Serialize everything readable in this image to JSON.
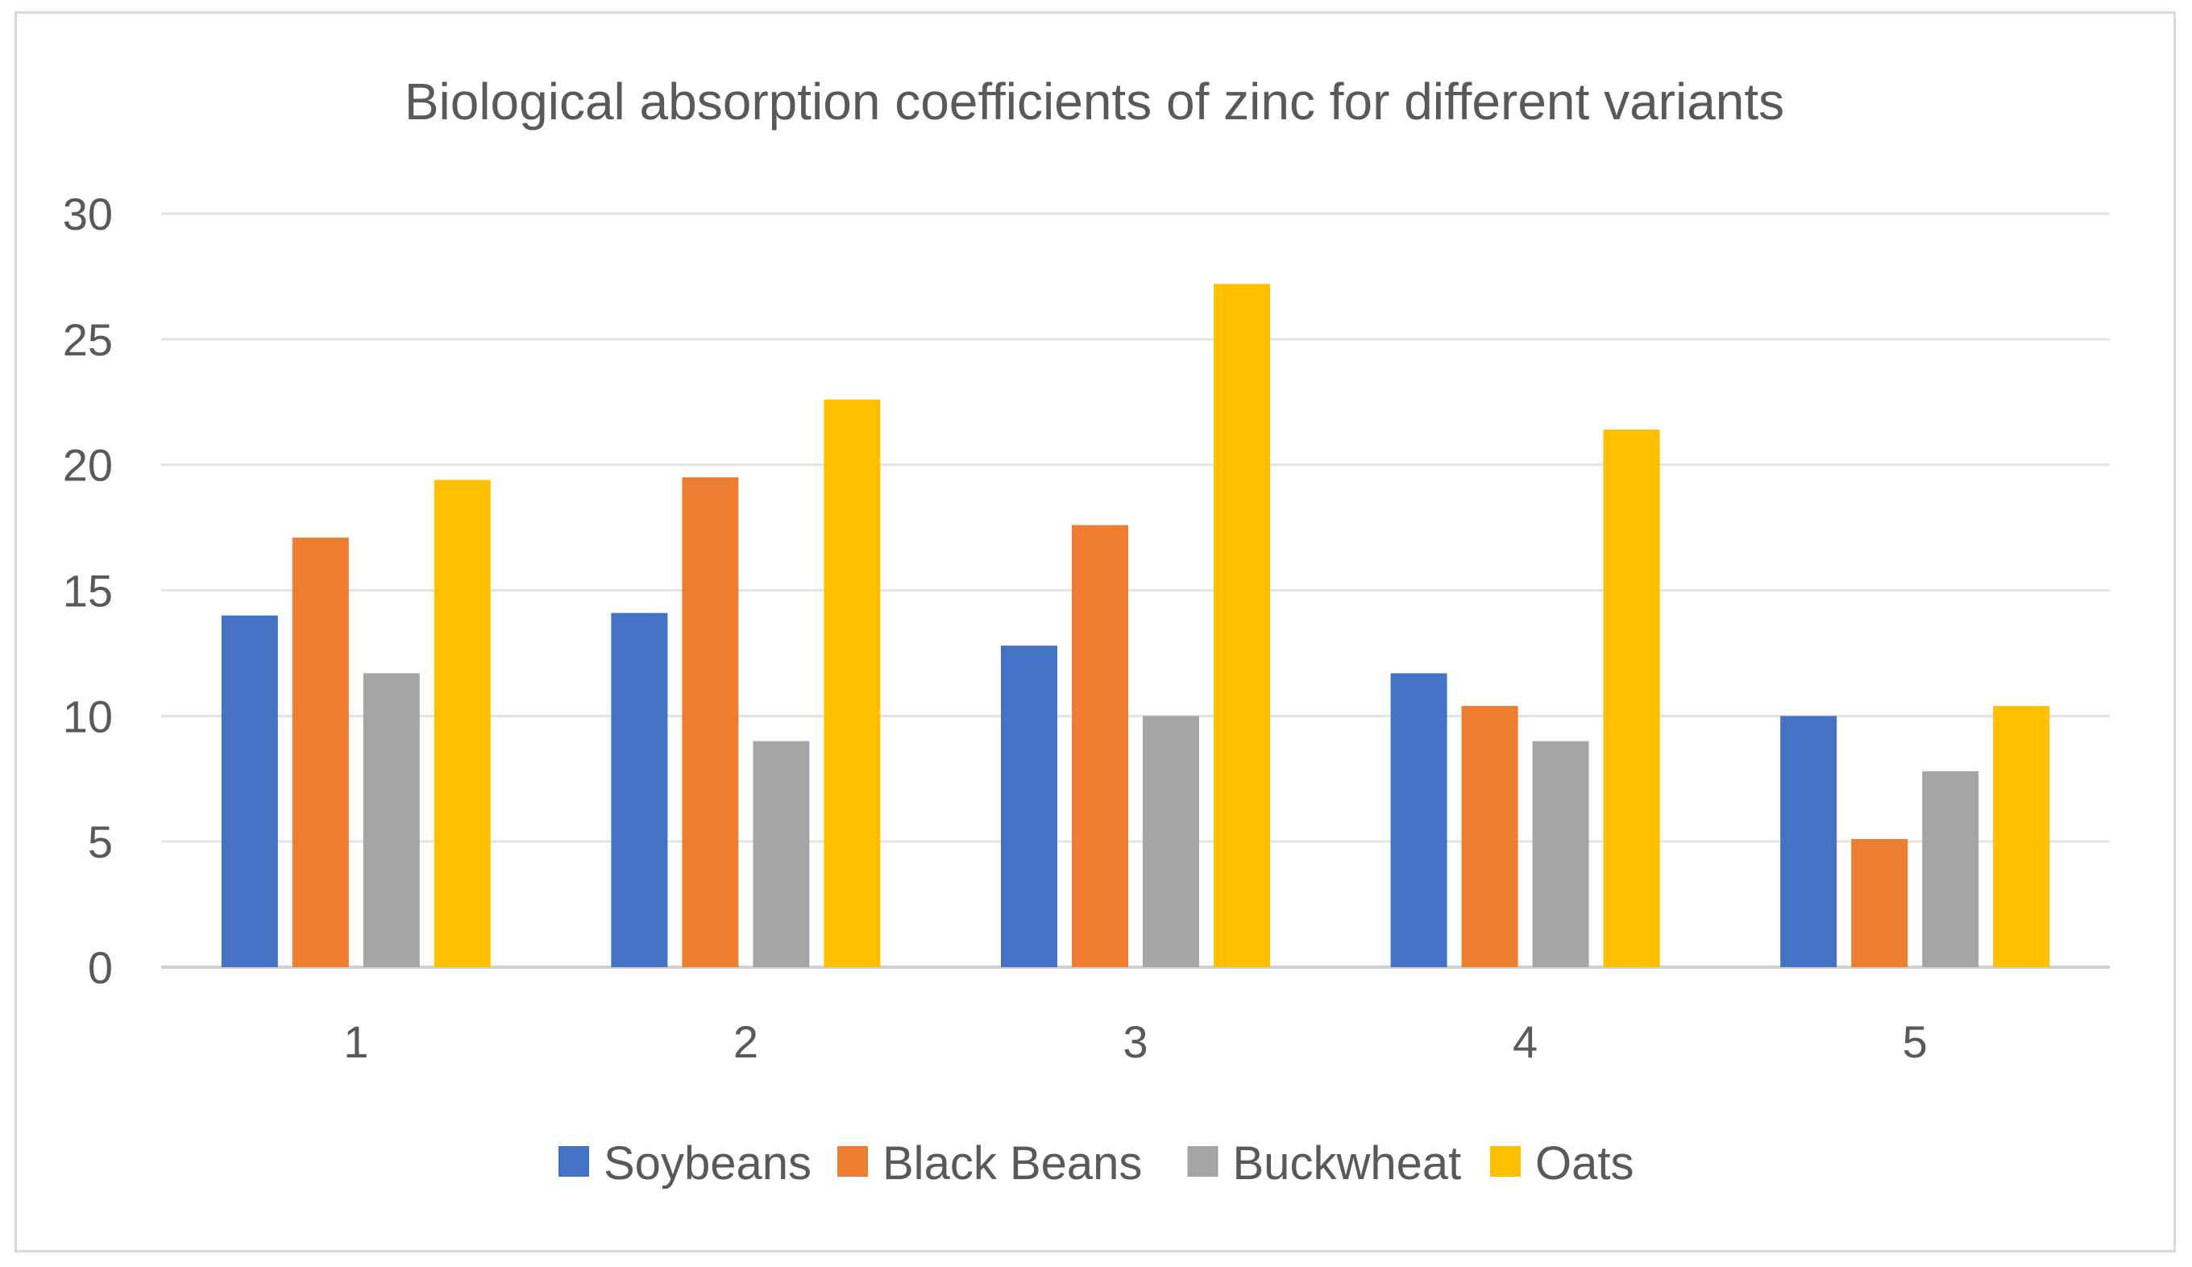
{
  "chart_data": {
    "type": "bar",
    "title": "Biological absorption coefficients of zinc for different variants",
    "xlabel": "",
    "ylabel": "",
    "categories": [
      "1",
      "2",
      "3",
      "4",
      "5"
    ],
    "series": [
      {
        "name": "Soybeans",
        "color": "#4472c4",
        "values": [
          14.0,
          14.1,
          12.8,
          11.7,
          10.0
        ]
      },
      {
        "name": "Black Beans",
        "color": "#ed7d31",
        "values": [
          17.1,
          19.5,
          17.6,
          10.4,
          5.1
        ]
      },
      {
        "name": "Buckwheat",
        "color": "#a5a5a5",
        "values": [
          11.7,
          9.0,
          10.0,
          9.0,
          7.8
        ]
      },
      {
        "name": "Oats",
        "color": "#ffc000",
        "values": [
          19.4,
          22.6,
          27.2,
          21.4,
          10.4
        ]
      }
    ],
    "ylim": [
      0,
      30
    ],
    "yticks": [
      "0",
      "5",
      "10",
      "15",
      "20",
      "25",
      "30"
    ],
    "grid": true,
    "legend_position": "bottom"
  }
}
